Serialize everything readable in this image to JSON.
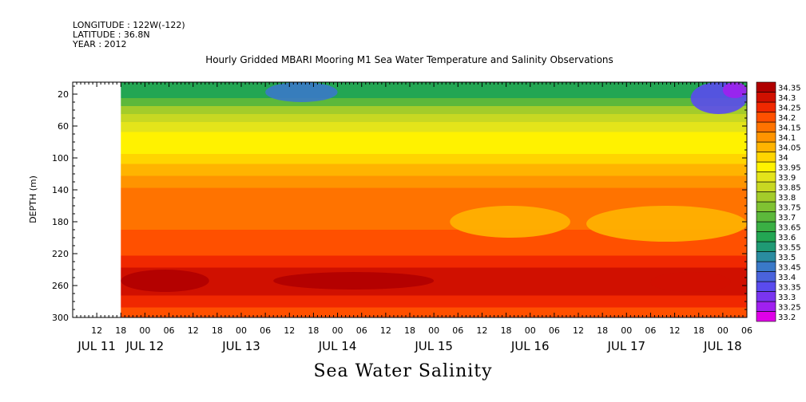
{
  "header": {
    "longitude": "LONGITUDE : 122W(-122)",
    "latitude": "LATITUDE : 36.8N",
    "year": "YEAR : 2012"
  },
  "title": "Hourly Gridded MBARI Mooring M1 Sea Water Temperature and Salinity Observations",
  "bottom_title": "Sea Water Salinity",
  "chart_data": {
    "type": "heatmap",
    "title": "Hourly Gridded MBARI Mooring M1 Sea Water Temperature and Salinity Observations",
    "xlabel": "",
    "ylabel": "DEPTH (m)",
    "colorbar_label": "Sea Water Salinity",
    "x_range_hours_from_jul11_00": [
      6,
      174
    ],
    "data_start_hour": 18,
    "ylim": [
      300,
      5
    ],
    "y_ticks": [
      20,
      60,
      100,
      140,
      180,
      220,
      260,
      300
    ],
    "x_hour_ticks": [
      "12",
      "18",
      "00",
      "06",
      "12",
      "18",
      "00",
      "06",
      "12",
      "18",
      "00",
      "06",
      "12",
      "18",
      "00",
      "06",
      "12",
      "18",
      "00",
      "06",
      "12",
      "18",
      "00",
      "06",
      "12",
      "18",
      "00",
      "06"
    ],
    "x_day_labels": [
      "JUL 11",
      "JUL 12",
      "JUL 13",
      "JUL 14",
      "JUL 15",
      "JUL 16",
      "JUL 17",
      "JUL 18"
    ],
    "levels": [
      "33.2",
      "33.25",
      "33.3",
      "33.35",
      "33.4",
      "33.45",
      "33.5",
      "33.55",
      "33.6",
      "33.65",
      "33.7",
      "33.75",
      "33.8",
      "33.85",
      "33.9",
      "33.95",
      "34",
      "34.05",
      "34.1",
      "34.15",
      "34.2",
      "34.25",
      "34.3",
      "34.35"
    ],
    "level_colors": [
      "#e000e8",
      "#a020f0",
      "#7a35f0",
      "#5a4bee",
      "#4a63dc",
      "#3a79c8",
      "#2a8ca0",
      "#1f9a74",
      "#23a653",
      "#3aaf44",
      "#5cb83b",
      "#80c232",
      "#a4cc2a",
      "#c8d822",
      "#e4e41a",
      "#fff200",
      "#ffd500",
      "#ffb400",
      "#ff9400",
      "#ff7300",
      "#ff5000",
      "#f02800",
      "#d01000",
      "#b00000"
    ],
    "profile": [
      {
        "depth": 10,
        "value": 33.6
      },
      {
        "depth": 20,
        "value": 33.63
      },
      {
        "depth": 30,
        "value": 33.72
      },
      {
        "depth": 40,
        "value": 33.8
      },
      {
        "depth": 50,
        "value": 33.87
      },
      {
        "depth": 60,
        "value": 33.93
      },
      {
        "depth": 75,
        "value": 33.96
      },
      {
        "depth": 90,
        "value": 33.98
      },
      {
        "depth": 100,
        "value": 34.02
      },
      {
        "depth": 115,
        "value": 34.07
      },
      {
        "depth": 130,
        "value": 34.12
      },
      {
        "depth": 145,
        "value": 34.17
      },
      {
        "depth": 160,
        "value": 34.18
      },
      {
        "depth": 180,
        "value": 34.18
      },
      {
        "depth": 200,
        "value": 34.2
      },
      {
        "depth": 215,
        "value": 34.23
      },
      {
        "depth": 230,
        "value": 34.28
      },
      {
        "depth": 245,
        "value": 34.31
      },
      {
        "depth": 255,
        "value": 34.33
      },
      {
        "depth": 265,
        "value": 34.31
      },
      {
        "depth": 280,
        "value": 34.27
      },
      {
        "depth": 295,
        "value": 34.2
      }
    ],
    "features": [
      {
        "name": "fresh-surface-jul13",
        "hour_start": 54,
        "hour_end": 72,
        "depth_top": 5,
        "depth_bottom": 30,
        "value": 33.45
      },
      {
        "name": "fresh-surface-jul17",
        "hour_start": 160,
        "hour_end": 174,
        "depth_top": 5,
        "depth_bottom": 45,
        "value": 33.35
      },
      {
        "name": "fresh-surface-jul18",
        "hour_start": 168,
        "hour_end": 174,
        "depth_top": 5,
        "depth_bottom": 25,
        "value": 33.25
      },
      {
        "name": "salty-core-jul11",
        "hour_start": 18,
        "hour_end": 40,
        "depth_top": 240,
        "depth_bottom": 268,
        "value": 34.35
      },
      {
        "name": "salty-core-jul13",
        "hour_start": 56,
        "hour_end": 96,
        "depth_top": 243,
        "depth_bottom": 265,
        "value": 34.35
      },
      {
        "name": "salty-core-jul17",
        "hour_start": 150,
        "hour_end": 170,
        "depth_top": 243,
        "depth_bottom": 268,
        "value": 34.33
      },
      {
        "name": "orange-midlayer-jul15",
        "hour_start": 100,
        "hour_end": 130,
        "depth_top": 160,
        "depth_bottom": 200,
        "value": 34.08
      },
      {
        "name": "orange-midlayer-jul16",
        "hour_start": 134,
        "hour_end": 174,
        "depth_top": 160,
        "depth_bottom": 205,
        "value": 34.08
      }
    ]
  }
}
